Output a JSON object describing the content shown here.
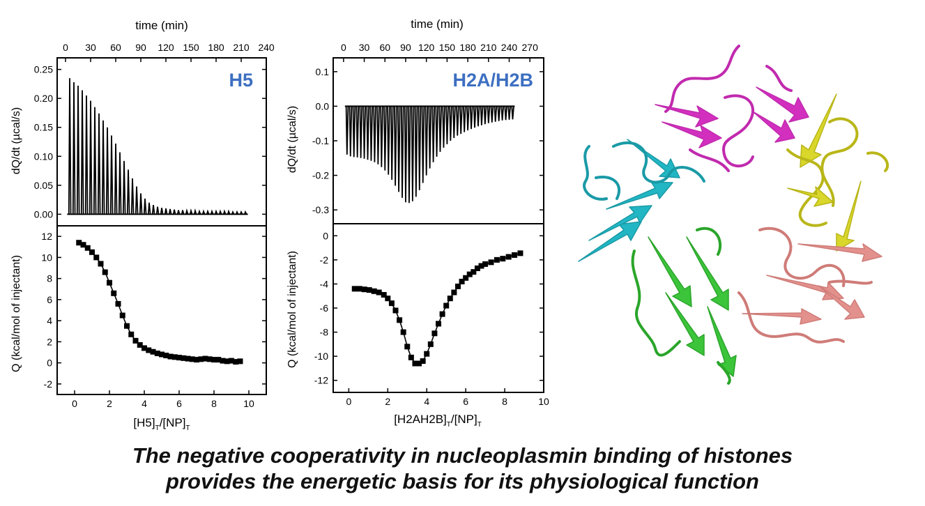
{
  "colors": {
    "axis": "#000000",
    "label_blue": "#3d6fc1",
    "cyan": "#22b6c4",
    "magenta": "#d22fbf",
    "yellow": "#d9d62c",
    "salmon": "#e3918d",
    "green": "#3cc43b"
  },
  "caption": {
    "line1": "The negative cooperativity in nucleoplasmin binding of histones",
    "line2": "provides the energetic basis for its physiological function"
  },
  "chart_data": [
    {
      "type": "line",
      "panel": "H5 thermogram",
      "label": "H5",
      "x2label": "time (min)",
      "x2ticks": [
        0,
        30,
        60,
        90,
        120,
        150,
        180,
        210,
        240
      ],
      "xlim": [
        -10,
        240
      ],
      "ylabel": "dQ/dt (µcal/s)",
      "ylim": [
        -0.02,
        0.27
      ],
      "yticks": [
        0.0,
        0.05,
        0.1,
        0.15,
        0.2,
        0.25
      ],
      "ytick_labels": [
        "0.00",
        "0.05",
        "0.10",
        "0.15",
        "0.20",
        "0.25"
      ],
      "series": [
        {
          "injection_times_min": [
            5,
            10,
            15,
            20,
            25,
            30,
            35,
            40,
            45,
            50,
            55,
            60,
            65,
            70,
            75,
            80,
            85,
            90,
            95,
            100,
            105,
            110,
            115,
            120,
            125,
            130,
            135,
            140,
            145,
            150,
            155,
            160,
            165,
            170,
            175,
            180,
            185,
            190,
            195,
            200,
            205,
            210,
            215
          ],
          "peak_heights": [
            0.235,
            0.228,
            0.222,
            0.214,
            0.205,
            0.196,
            0.185,
            0.174,
            0.162,
            0.15,
            0.136,
            0.122,
            0.107,
            0.092,
            0.077,
            0.062,
            0.048,
            0.036,
            0.027,
            0.02,
            0.016,
            0.013,
            0.011,
            0.01,
            0.009,
            0.008,
            0.007,
            0.007,
            0.006,
            0.006,
            0.006,
            0.005,
            0.005,
            0.005,
            0.005,
            0.005,
            0.005,
            0.005,
            0.005,
            0.004,
            0.004,
            0.004,
            0.004
          ]
        }
      ]
    },
    {
      "type": "scatter",
      "panel": "H5 isotherm",
      "xlabel": "[H5]T/[NP]T",
      "xlim": [
        -1,
        11
      ],
      "xticks": [
        0,
        2,
        4,
        6,
        8,
        10
      ],
      "ylabel": "Q (kcal/mol of injectant)",
      "ylim": [
        -3,
        13
      ],
      "yticks": [
        -2,
        0,
        2,
        4,
        6,
        8,
        10,
        12
      ],
      "series": [
        {
          "x": [
            0.25,
            0.5,
            0.75,
            1.0,
            1.25,
            1.5,
            1.75,
            2.0,
            2.25,
            2.5,
            2.75,
            3.0,
            3.25,
            3.5,
            3.75,
            4.0,
            4.25,
            4.5,
            4.75,
            5.0,
            5.25,
            5.5,
            5.75,
            6.0,
            6.25,
            6.5,
            6.75,
            7.0,
            7.25,
            7.5,
            7.75,
            8.0,
            8.25,
            8.5,
            8.75,
            9.0,
            9.25,
            9.5
          ],
          "y": [
            11.4,
            11.2,
            10.9,
            10.5,
            10.0,
            9.4,
            8.6,
            7.6,
            6.6,
            5.6,
            4.5,
            3.5,
            2.7,
            2.1,
            1.7,
            1.4,
            1.2,
            1.05,
            0.9,
            0.8,
            0.7,
            0.6,
            0.55,
            0.5,
            0.45,
            0.4,
            0.35,
            0.3,
            0.35,
            0.4,
            0.35,
            0.3,
            0.3,
            0.2,
            0.15,
            0.2,
            0.1,
            0.15
          ]
        }
      ]
    },
    {
      "type": "line",
      "panel": "H2A/H2B thermogram",
      "label": "H2A/H2B",
      "x2label": "time (min)",
      "x2ticks": [
        0,
        30,
        60,
        90,
        120,
        150,
        180,
        210,
        240,
        270
      ],
      "xlim": [
        -15,
        290
      ],
      "ylabel": "dQ/dt (µcal/s)",
      "ylim": [
        -0.34,
        0.14
      ],
      "yticks": [
        -0.3,
        -0.2,
        -0.1,
        0.0,
        0.1
      ],
      "ytick_labels": [
        "-0.3",
        "-0.2",
        "-0.1",
        "0.0",
        "0.1"
      ],
      "series": [
        {
          "injection_times_min": [
            5,
            10,
            15,
            20,
            25,
            30,
            35,
            40,
            45,
            50,
            55,
            60,
            65,
            70,
            75,
            80,
            85,
            90,
            95,
            100,
            105,
            110,
            115,
            120,
            125,
            130,
            135,
            140,
            145,
            150,
            155,
            160,
            165,
            170,
            175,
            180,
            185,
            190,
            195,
            200,
            205,
            210,
            215,
            220,
            225,
            230,
            235,
            240,
            245
          ],
          "peak_heights": [
            -0.14,
            -0.145,
            -0.147,
            -0.148,
            -0.15,
            -0.152,
            -0.155,
            -0.158,
            -0.162,
            -0.168,
            -0.176,
            -0.186,
            -0.198,
            -0.213,
            -0.23,
            -0.248,
            -0.265,
            -0.278,
            -0.28,
            -0.275,
            -0.262,
            -0.243,
            -0.222,
            -0.2,
            -0.18,
            -0.162,
            -0.146,
            -0.132,
            -0.12,
            -0.11,
            -0.1,
            -0.092,
            -0.085,
            -0.08,
            -0.075,
            -0.07,
            -0.066,
            -0.062,
            -0.058,
            -0.055,
            -0.052,
            -0.049,
            -0.047,
            -0.045,
            -0.043,
            -0.041,
            -0.04,
            -0.039,
            -0.038
          ]
        }
      ]
    },
    {
      "type": "scatter",
      "panel": "H2A/H2B isotherm",
      "xlabel": "[H2AH2B]T/[NP]T",
      "xlim": [
        -0.8,
        10
      ],
      "xticks": [
        0,
        2,
        4,
        6,
        8,
        10
      ],
      "ylabel": "Q (kcal/mol of injectant)",
      "ylim": [
        -13,
        1
      ],
      "yticks": [
        -12,
        -10,
        -8,
        -6,
        -4,
        -2,
        0
      ],
      "series": [
        {
          "x": [
            0.3,
            0.55,
            0.8,
            1.05,
            1.3,
            1.55,
            1.8,
            2.0,
            2.2,
            2.4,
            2.6,
            2.8,
            3.0,
            3.2,
            3.4,
            3.6,
            3.8,
            4.0,
            4.2,
            4.4,
            4.6,
            4.8,
            5.0,
            5.2,
            5.4,
            5.6,
            5.8,
            6.0,
            6.2,
            6.4,
            6.6,
            6.8,
            7.0,
            7.3,
            7.6,
            7.9,
            8.2,
            8.5,
            8.8
          ],
          "y": [
            -4.4,
            -4.4,
            -4.45,
            -4.5,
            -4.6,
            -4.7,
            -4.9,
            -5.2,
            -5.6,
            -6.2,
            -7.0,
            -8.0,
            -9.2,
            -10.1,
            -10.6,
            -10.6,
            -10.4,
            -9.8,
            -9.0,
            -8.1,
            -7.3,
            -6.5,
            -5.8,
            -5.2,
            -4.7,
            -4.2,
            -3.8,
            -3.5,
            -3.2,
            -3.0,
            -2.7,
            -2.5,
            -2.35,
            -2.2,
            -2.0,
            -1.9,
            -1.75,
            -1.6,
            -1.45
          ]
        }
      ]
    }
  ]
}
